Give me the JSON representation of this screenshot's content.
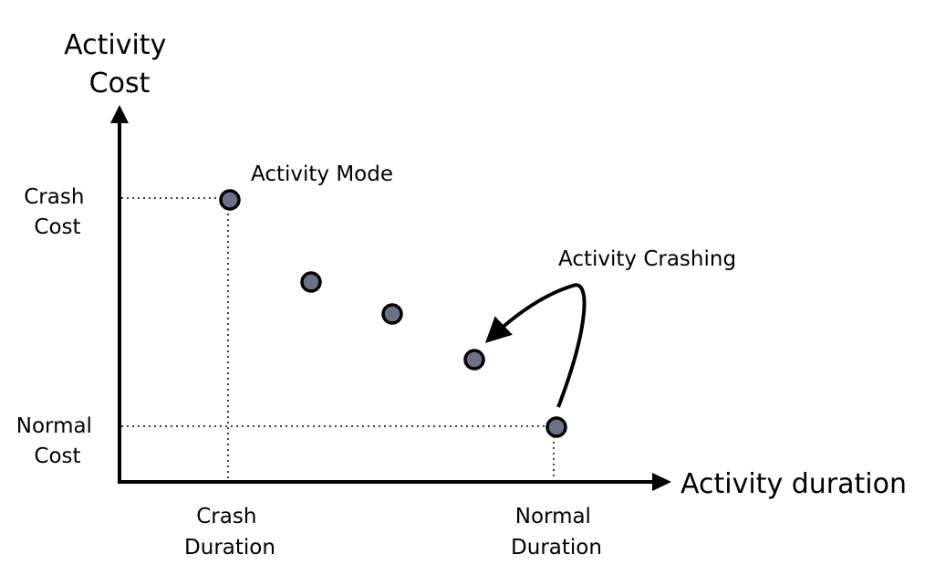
{
  "diagram": {
    "y_axis_title": [
      "Activity",
      "Cost"
    ],
    "x_axis_title": "Activity duration",
    "crash_cost_label": [
      "Crash",
      "Cost"
    ],
    "normal_cost_label": [
      "Normal",
      "Cost"
    ],
    "crash_duration_label": [
      "Crash",
      "Duration"
    ],
    "normal_duration_label": [
      "Normal",
      "Duration"
    ],
    "activity_mode_label": "Activity Mode",
    "activity_crashing_label": "Activity Crashing",
    "point_color": "#6b7287",
    "stroke_color": "#000000"
  }
}
